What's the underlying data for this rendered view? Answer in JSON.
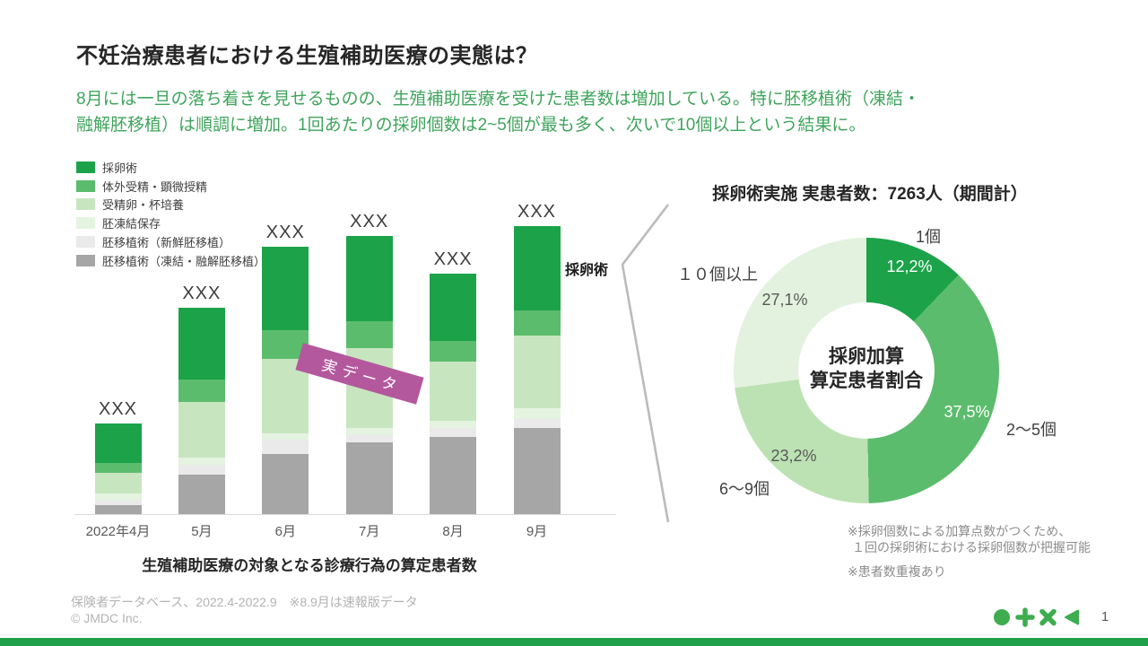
{
  "slide": {
    "title": "不妊治療患者における生殖補助医療の実態は？",
    "subtitle_lines": [
      "8月には一旦の落ち着きを見せるものの、生殖補助医療を受けた患者数は増加している。特に胚移植術（凍結・",
      "融解胚移植）は順調に増加。1回あたりの採卵個数は2~5個が最も多く、次いで10個以上という結果に。"
    ],
    "stamp": "実データ",
    "footer": {
      "source": "保険者データベース、2022.4-2022.9　※8.9月は速報版データ",
      "copyright": "© JMDC Inc.",
      "page_number": "1",
      "icons": [
        "circle",
        "plus",
        "cross",
        "triangle-left"
      ]
    },
    "colors": {
      "darkGreen": "#1CA34A",
      "medGreen": "#5CBC6D",
      "lightGreen": "#C7E6C0",
      "frostGreen": "#E5F3E1",
      "lightGray": "#EAEAEA",
      "gray": "#A6A6A6",
      "donutLight": "#BCE2B3",
      "donutFrost": "#E3F2DE",
      "accentGreen": "#3FA45C",
      "stampPurple": "#B4589D",
      "bottomBarGreen": "#21A04B",
      "iconGreen": "#3EAC4F",
      "connectorGray": "#BBBBBB"
    }
  },
  "chart_data": [
    {
      "type": "bar",
      "stacked": true,
      "title": "生殖補助医療の対象となる診療行為の算定患者数",
      "right_annotation": "採卵術",
      "categories": [
        "2022年4月",
        "5月",
        "6月",
        "7月",
        "8月",
        "9月"
      ],
      "bar_top_labels": [
        "XXX",
        "XXX",
        "XXX",
        "XXX",
        "XXX",
        "XXX"
      ],
      "values_note": "actual values masked as XXX in source; series values are segment heights estimated in px from the figure",
      "series": [
        {
          "name": "採卵術",
          "color_key": "darkGreen",
          "values": [
            44,
            80,
            93,
            95,
            75,
            94
          ]
        },
        {
          "name": "体外受精・顕微授精",
          "color_key": "medGreen",
          "values": [
            11,
            25,
            32,
            30,
            23,
            28
          ]
        },
        {
          "name": "受精卵・杯培養",
          "color_key": "lightGreen",
          "values": [
            23,
            62,
            83,
            89,
            66,
            81
          ]
        },
        {
          "name": "胚凍結保存",
          "color_key": "frostGreen",
          "values": [
            8,
            8,
            7,
            8,
            8,
            12
          ]
        },
        {
          "name": "胚移植術（新鮮胚移植）",
          "color_key": "lightGray",
          "values": [
            5,
            11,
            16,
            8,
            10,
            10
          ]
        },
        {
          "name": "胚移植術（凍結・融解胚移植）",
          "color_key": "gray",
          "values": [
            10,
            44,
            67,
            80,
            86,
            96
          ]
        }
      ],
      "legend_position": "top-left",
      "grid": false
    },
    {
      "type": "pie",
      "subtype": "donut",
      "title": "採卵術実施 実患者数：7263人（期間計）",
      "center_lines": [
        "採卵加算",
        "算定患者割合"
      ],
      "slices": [
        {
          "label": "1個",
          "pct_label": "12,2%",
          "value": 12.2,
          "color_key": "darkGreen"
        },
        {
          "label": "2～5個",
          "pct_label": "37,5%",
          "value": 37.5,
          "color_key": "medGreen"
        },
        {
          "label": "6～9個",
          "pct_label": "23,2%",
          "value": 23.2,
          "color_key": "donutLight"
        },
        {
          "label": "１０個以上",
          "pct_label": "27,1%",
          "value": 27.1,
          "color_key": "donutFrost"
        }
      ],
      "start_angle_deg": 0,
      "direction": "clockwise",
      "notes": [
        "※採卵個数による加算点数がつくため、",
        "１回の採卵術における採卵個数が把握可能",
        "※患者数重複あり"
      ]
    }
  ]
}
